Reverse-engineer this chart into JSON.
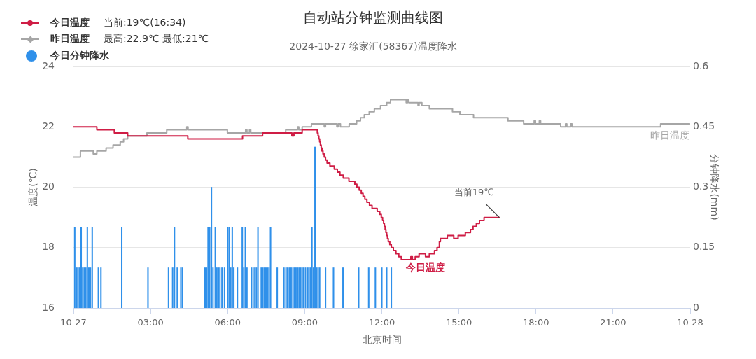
{
  "chart_data": {
    "type": "step",
    "title": "自动站分钟监测曲线图",
    "subtitle": "2024-10-27 徐家汇(58367)温度降水",
    "xlabel": "北京时间",
    "ylabel": "温度(℃)",
    "y2label": "分钟降水(mm)",
    "xlim": [
      0,
      24
    ],
    "xticks": [
      {
        "value": 0,
        "label": "10-27"
      },
      {
        "value": 3,
        "label": "03:00"
      },
      {
        "value": 6,
        "label": "06:00"
      },
      {
        "value": 9,
        "label": "09:00"
      },
      {
        "value": 12,
        "label": "12:00"
      },
      {
        "value": 15,
        "label": "15:00"
      },
      {
        "value": 18,
        "label": "18:00"
      },
      {
        "value": 21,
        "label": "21:00"
      },
      {
        "value": 24,
        "label": "10-28"
      }
    ],
    "ylim": [
      16,
      24
    ],
    "yticks": [
      16,
      18,
      20,
      22,
      24
    ],
    "y2lim": [
      0,
      0.6
    ],
    "y2ticks": [
      0,
      0.15,
      0.3,
      0.45,
      0.6
    ],
    "grid": "y",
    "legend": "top left",
    "series": [
      {
        "name": "今日温度",
        "color": "#cf1d45",
        "x": [
          0,
          0.91,
          1.59,
          2.11,
          4.45,
          6.58,
          7.36,
          8.5,
          8.58,
          8.9,
          9.47,
          9.49,
          9.52,
          9.55,
          9.58,
          9.61,
          9.64,
          9.67,
          9.71,
          9.76,
          9.81,
          9.87,
          9.98,
          10.15,
          10.27,
          10.37,
          10.5,
          10.72,
          10.95,
          11.03,
          11.12,
          11.2,
          11.27,
          11.34,
          11.42,
          11.52,
          11.62,
          11.82,
          11.92,
          11.98,
          12.03,
          12.07,
          12.1,
          12.13,
          12.16,
          12.19,
          12.22,
          12.25,
          12.31,
          12.37,
          12.45,
          12.55,
          12.66,
          12.76,
          13.13,
          13.19,
          13.3,
          13.45,
          13.7,
          13.85,
          14.05,
          14.15,
          14.24,
          14.28,
          14.55,
          14.8,
          14.97,
          15.25,
          15.45,
          15.55,
          15.68,
          15.8,
          15.98,
          16.57
        ],
        "values": [
          22.0,
          21.9,
          21.8,
          21.7,
          21.6,
          21.7,
          21.8,
          21.7,
          21.8,
          21.9,
          21.9,
          21.8,
          21.7,
          21.6,
          21.5,
          21.4,
          21.3,
          21.2,
          21.1,
          21.0,
          20.9,
          20.8,
          20.7,
          20.6,
          20.5,
          20.4,
          20.3,
          20.2,
          20.1,
          20.0,
          19.9,
          19.8,
          19.7,
          19.6,
          19.5,
          19.4,
          19.3,
          19.2,
          19.1,
          19.0,
          18.9,
          18.8,
          18.7,
          18.6,
          18.5,
          18.4,
          18.3,
          18.2,
          18.1,
          18.0,
          17.9,
          17.8,
          17.7,
          17.6,
          17.7,
          17.6,
          17.7,
          17.8,
          17.7,
          17.8,
          17.9,
          18.0,
          18.2,
          18.3,
          18.4,
          18.3,
          18.4,
          18.5,
          18.6,
          18.7,
          18.8,
          18.9,
          19.0,
          19.0
        ]
      },
      {
        "name": "昨日温度",
        "color": "#a6a6a6",
        "x": [
          0,
          0.27,
          0.77,
          0.91,
          1.27,
          1.54,
          1.82,
          1.95,
          2.11,
          2.86,
          3.63,
          4.41,
          4.46,
          5.99,
          6.7,
          6.75,
          6.85,
          6.9,
          8.26,
          8.72,
          8.77,
          8.9,
          9.26,
          9.76,
          9.81,
          10.25,
          10.3,
          10.39,
          10.73,
          11.02,
          11.17,
          11.32,
          11.51,
          11.71,
          11.95,
          12.19,
          12.34,
          12.95,
          13.0,
          13.05,
          13.41,
          13.45,
          13.56,
          13.85,
          14.75,
          15.04,
          15.57,
          16.91,
          17.52,
          17.93,
          17.98,
          18.13,
          18.18,
          18.96,
          19.15,
          19.2,
          19.35,
          19.4,
          22.85,
          23.98
        ],
        "values": [
          21.0,
          21.2,
          21.1,
          21.2,
          21.3,
          21.4,
          21.5,
          21.6,
          21.7,
          21.8,
          21.9,
          22.0,
          21.9,
          21.8,
          21.9,
          21.8,
          21.9,
          21.8,
          21.9,
          22.0,
          21.9,
          22.0,
          22.1,
          22.0,
          22.1,
          22.0,
          22.1,
          22.0,
          22.1,
          22.2,
          22.3,
          22.4,
          22.5,
          22.6,
          22.7,
          22.8,
          22.9,
          22.8,
          22.9,
          22.8,
          22.7,
          22.8,
          22.7,
          22.6,
          22.5,
          22.4,
          22.3,
          22.2,
          22.1,
          22.2,
          22.1,
          22.2,
          22.1,
          22.0,
          22.1,
          22.0,
          22.1,
          22.0,
          22.1,
          22.1
        ]
      },
      {
        "name": "今日分钟降水",
        "type": "bar",
        "axis": "y2",
        "color": "#2f90ea",
        "x": [
          0.05,
          0.11,
          0.17,
          0.23,
          0.3,
          0.36,
          0.42,
          0.48,
          0.54,
          0.6,
          0.66,
          0.73,
          0.97,
          1.07,
          1.88,
          2.9,
          3.7,
          3.86,
          3.93,
          4.04,
          4.18,
          4.24,
          5.12,
          5.18,
          5.24,
          5.3,
          5.37,
          5.43,
          5.52,
          5.58,
          5.64,
          5.7,
          5.78,
          5.88,
          6.0,
          6.06,
          6.12,
          6.18,
          6.24,
          6.38,
          6.57,
          6.63,
          6.69,
          6.75,
          6.92,
          6.99,
          7.06,
          7.12,
          7.18,
          7.31,
          7.37,
          7.43,
          7.49,
          7.55,
          7.61,
          7.67,
          7.93,
          8.19,
          8.27,
          8.33,
          8.4,
          8.47,
          8.54,
          8.6,
          8.66,
          8.72,
          8.78,
          8.84,
          8.9,
          8.96,
          9.03,
          9.1,
          9.16,
          9.22,
          9.28,
          9.34,
          9.4,
          9.46,
          9.52,
          9.58,
          9.81,
          10.12,
          10.49,
          11.1,
          11.49,
          11.75,
          12.0,
          12.19,
          12.37
        ],
        "values": [
          0.2,
          0.1,
          0.1,
          0.1,
          0.2,
          0.1,
          0.1,
          0.1,
          0.2,
          0.1,
          0.1,
          0.2,
          0.1,
          0.1,
          0.2,
          0.1,
          0.1,
          0.1,
          0.2,
          0.1,
          0.1,
          0.1,
          0.1,
          0.1,
          0.2,
          0.2,
          0.3,
          0.1,
          0.2,
          0.1,
          0.1,
          0.1,
          0.1,
          0.1,
          0.2,
          0.2,
          0.1,
          0.2,
          0.1,
          0.1,
          0.2,
          0.1,
          0.2,
          0.1,
          0.1,
          0.1,
          0.1,
          0.1,
          0.2,
          0.1,
          0.1,
          0.1,
          0.1,
          0.1,
          0.1,
          0.2,
          0.1,
          0.1,
          0.1,
          0.1,
          0.1,
          0.1,
          0.1,
          0.1,
          0.1,
          0.1,
          0.1,
          0.1,
          0.1,
          0.1,
          0.1,
          0.1,
          0.1,
          0.1,
          0.2,
          0.1,
          0.4,
          0.1,
          0.1,
          0.1,
          0.1,
          0.1,
          0.1,
          0.1,
          0.1,
          0.1,
          0.1,
          0.1,
          0.1
        ]
      }
    ],
    "annotations": [
      "当前:19℃(16:34)",
      "最高:22.9℃ 最低:21℃",
      {
        "text": "当前19℃",
        "x": 16.57,
        "y": 19.0
      }
    ]
  }
}
